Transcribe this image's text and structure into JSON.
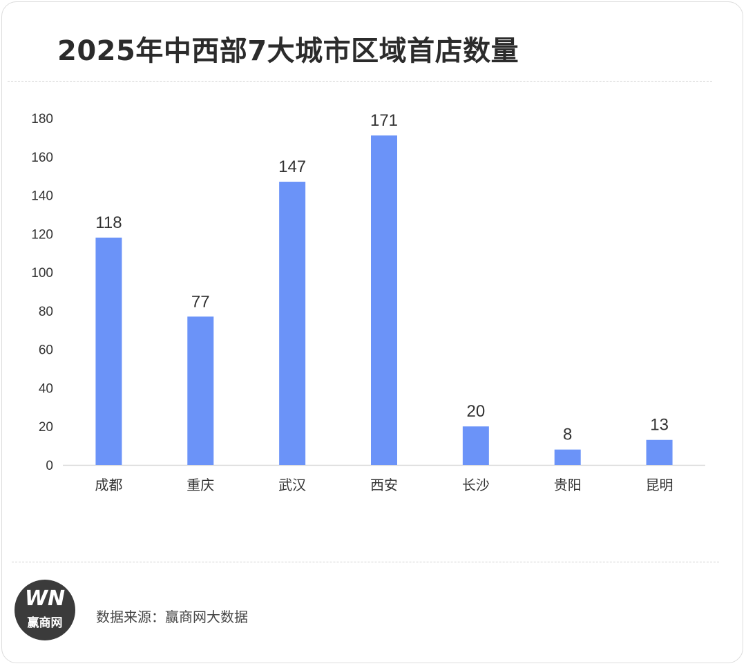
{
  "chart_data": {
    "type": "bar",
    "title": "2025年中西部7大城市区域首店数量",
    "categories": [
      "成都",
      "重庆",
      "武汉",
      "西安",
      "长沙",
      "贵阳",
      "昆明"
    ],
    "values": [
      118,
      77,
      147,
      171,
      20,
      8,
      13
    ],
    "xlabel": "",
    "ylabel": "",
    "ylim": [
      0,
      180
    ],
    "yticks": [
      0,
      20,
      40,
      60,
      80,
      100,
      120,
      140,
      160,
      180
    ],
    "grid": false,
    "legend": "none",
    "bar_color": "#6b93f8",
    "data_labels": true
  },
  "footer": {
    "source": "数据来源：赢商网大数据",
    "logo_mark": "WN",
    "logo_name": "赢商网"
  },
  "colors": {
    "bar": "#6b93f8",
    "text": "#333333",
    "axis": "#d9d9d9",
    "logo_bg": "#3b3b3b"
  }
}
